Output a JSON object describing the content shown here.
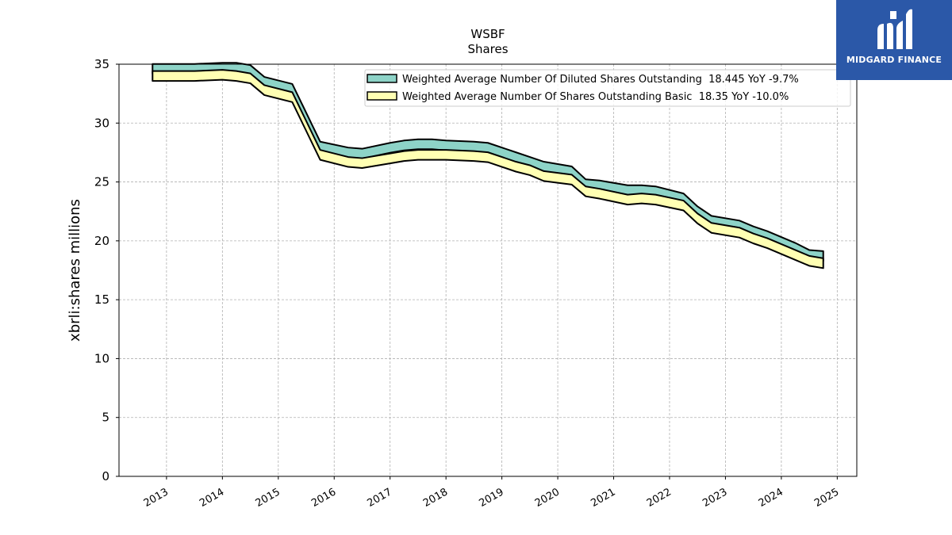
{
  "chart_data": {
    "type": "area",
    "title": "WSBF",
    "subtitle": "Shares",
    "xlabel": "",
    "ylabel": "xbrli:shares millions",
    "ylim": [
      0,
      35
    ],
    "xlim": [
      2012.15,
      2025.35
    ],
    "yticks": [
      "0",
      "5",
      "10",
      "15",
      "20",
      "25",
      "30",
      "35"
    ],
    "xticks": [
      "2013",
      "2014",
      "2015",
      "2016",
      "2017",
      "2018",
      "2019",
      "2020",
      "2021",
      "2022",
      "2023",
      "2024",
      "2025"
    ],
    "grid": true,
    "legend_position": "top-right",
    "series": [
      {
        "name": "Weighted Average Number Of Diluted Shares Outstanding  18.445 YoY -9.7%",
        "color": "#8dd3c7",
        "x": [
          2012.75,
          2013.0,
          2013.5,
          2014.0,
          2014.25,
          2014.5,
          2014.75,
          2015.25,
          2015.75,
          2016.25,
          2016.5,
          2017.0,
          2017.25,
          2017.5,
          2017.75,
          2018.0,
          2018.5,
          2018.75,
          2019.25,
          2019.5,
          2019.75,
          2020.25,
          2020.5,
          2020.75,
          2021.25,
          2021.5,
          2021.75,
          2022.25,
          2022.5,
          2022.75,
          2023.25,
          2023.5,
          2023.75,
          2024.25,
          2024.5,
          2024.75
        ],
        "values": [
          34.6,
          34.6,
          34.6,
          34.7,
          34.7,
          34.5,
          33.5,
          32.9,
          28.0,
          27.5,
          27.4,
          27.9,
          28.1,
          28.2,
          28.2,
          28.1,
          28.0,
          27.9,
          27.1,
          26.7,
          26.3,
          25.9,
          24.8,
          24.7,
          24.3,
          24.3,
          24.2,
          23.6,
          22.5,
          21.7,
          21.3,
          20.8,
          20.4,
          19.4,
          18.8,
          18.7
        ]
      },
      {
        "name": "Weighted Average Number Of Shares Outstanding Basic  18.35 YoY -10.0%",
        "color": "#ffffb3",
        "x": [
          2012.75,
          2013.0,
          2013.5,
          2014.0,
          2014.25,
          2014.5,
          2014.75,
          2015.25,
          2015.75,
          2016.25,
          2016.5,
          2017.0,
          2017.25,
          2017.5,
          2017.75,
          2018.0,
          2018.5,
          2018.75,
          2019.25,
          2019.5,
          2019.75,
          2020.25,
          2020.5,
          2020.75,
          2021.25,
          2021.5,
          2021.75,
          2022.25,
          2022.5,
          2022.75,
          2023.25,
          2023.5,
          2023.75,
          2024.25,
          2024.5,
          2024.75
        ],
        "values": [
          34.0,
          34.0,
          34.0,
          34.1,
          34.0,
          33.8,
          32.8,
          32.2,
          27.3,
          26.7,
          26.6,
          27.0,
          27.2,
          27.3,
          27.3,
          27.3,
          27.2,
          27.1,
          26.3,
          26.0,
          25.5,
          25.2,
          24.2,
          24.0,
          23.5,
          23.6,
          23.5,
          23.0,
          21.9,
          21.1,
          20.7,
          20.2,
          19.8,
          18.8,
          18.3,
          18.1
        ]
      }
    ]
  },
  "logo": {
    "text": "MIDGARD FINANCE"
  }
}
